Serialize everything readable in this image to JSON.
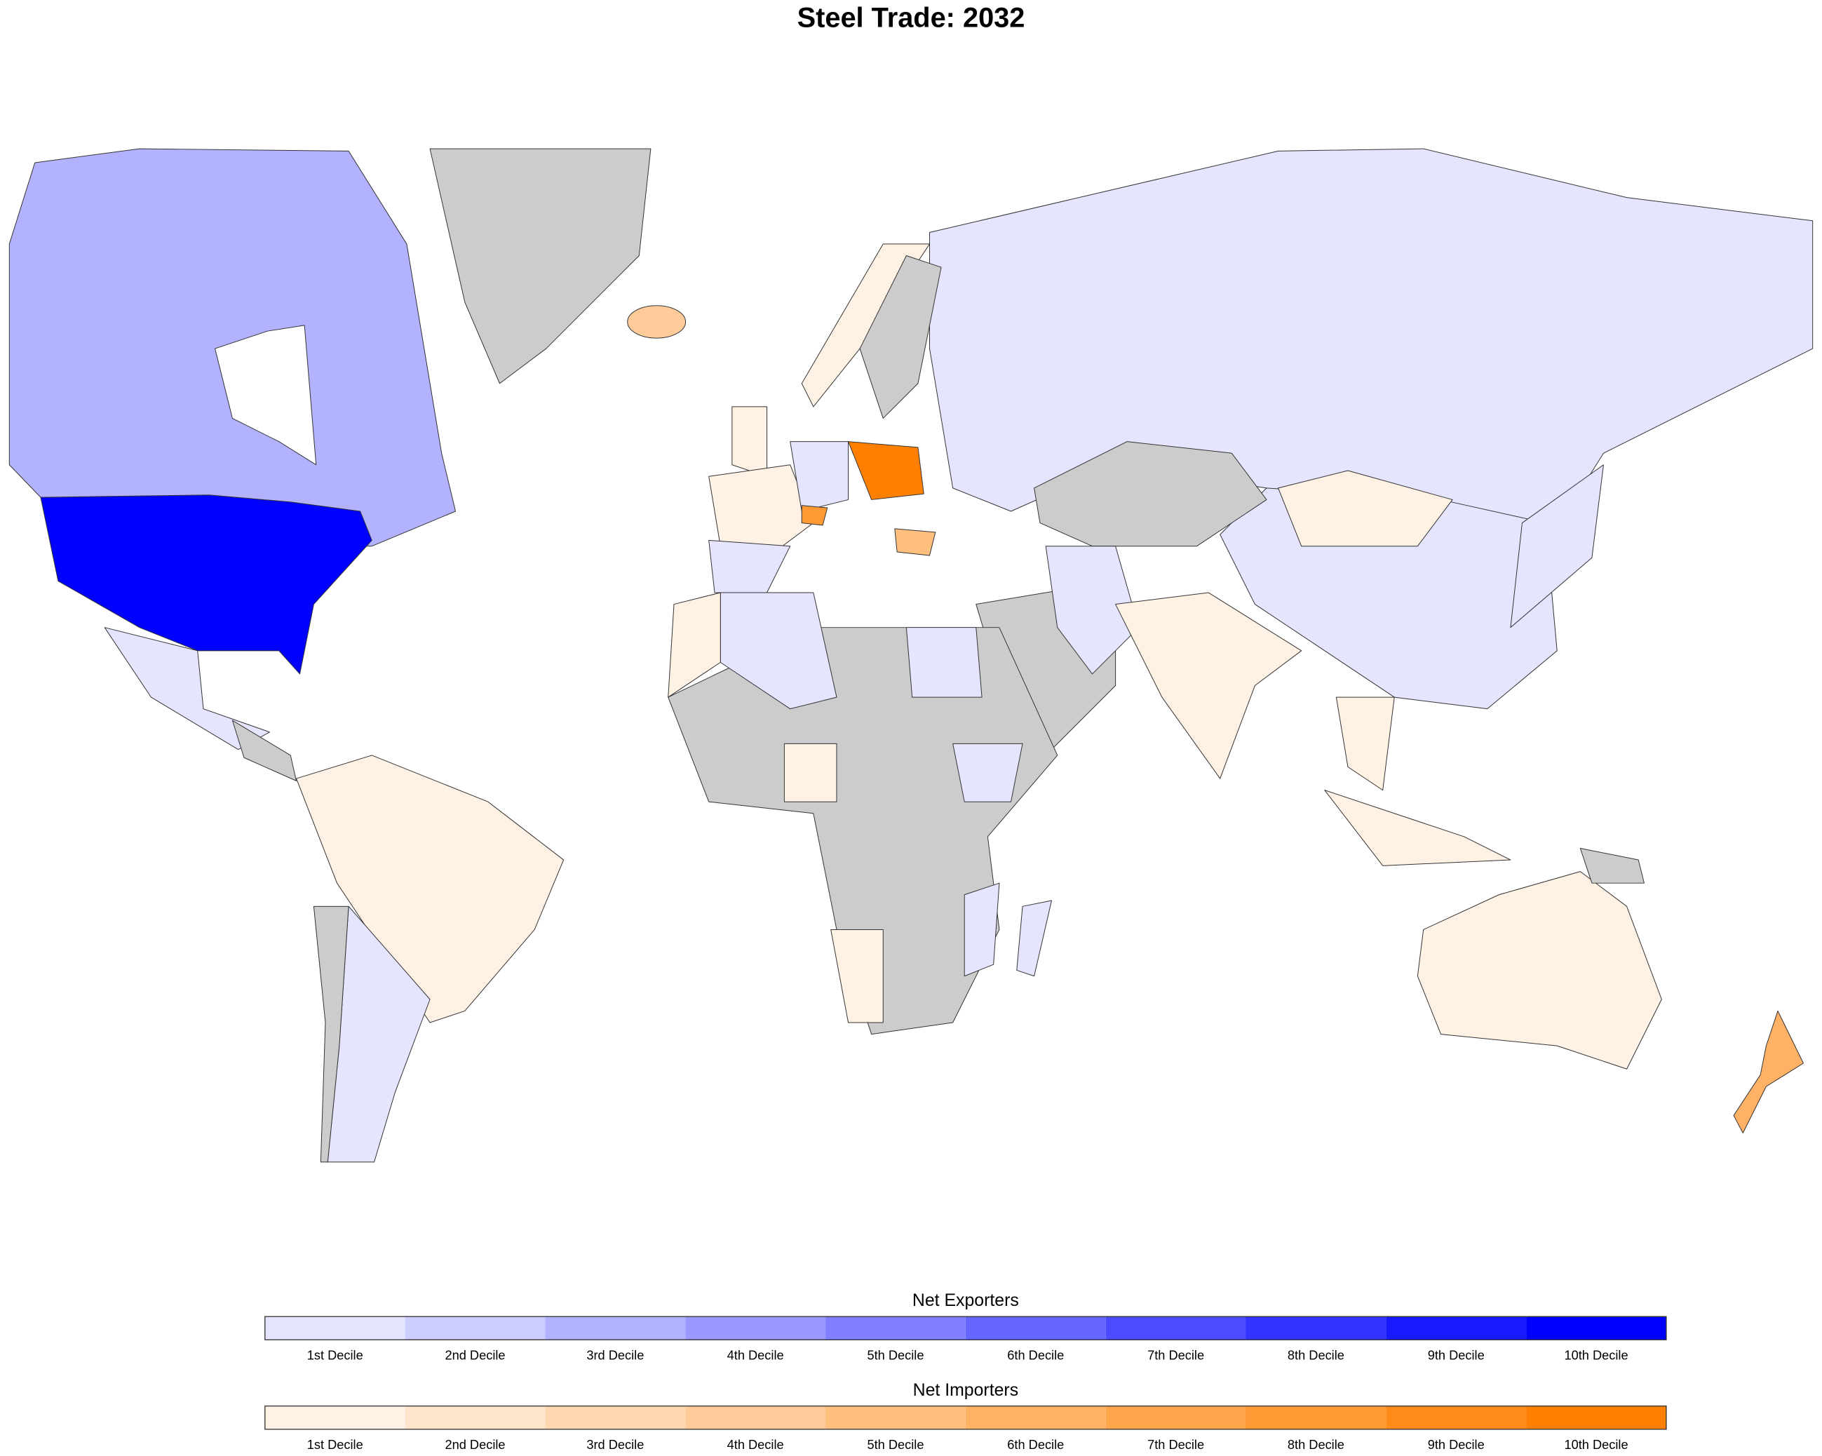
{
  "title": "Steel Trade: 2032",
  "legends": [
    {
      "title": "Net Exporters",
      "labels": [
        "1st Decile",
        "2nd Decile",
        "3rd Decile",
        "4th Decile",
        "5th Decile",
        "6th Decile",
        "7th Decile",
        "8th Decile",
        "9th Decile",
        "10th Decile"
      ],
      "colors": [
        "#e5e5ff",
        "#ccccff",
        "#b2b2ff",
        "#9999ff",
        "#7f7fff",
        "#6666ff",
        "#4c4cff",
        "#3333ff",
        "#1919ff",
        "#0000ff"
      ]
    },
    {
      "title": "Net Importers",
      "labels": [
        "1st Decile",
        "2nd Decile",
        "3rd Decile",
        "4th Decile",
        "5th Decile",
        "6th Decile",
        "7th Decile",
        "8th Decile",
        "9th Decile",
        "10th Decile"
      ],
      "colors": [
        "#fff2e5",
        "#ffe5cc",
        "#ffd8b2",
        "#ffcc99",
        "#ffbf7f",
        "#ffb266",
        "#ffa54c",
        "#ff9933",
        "#ff8c19",
        "#ff7f00"
      ]
    }
  ]
}
